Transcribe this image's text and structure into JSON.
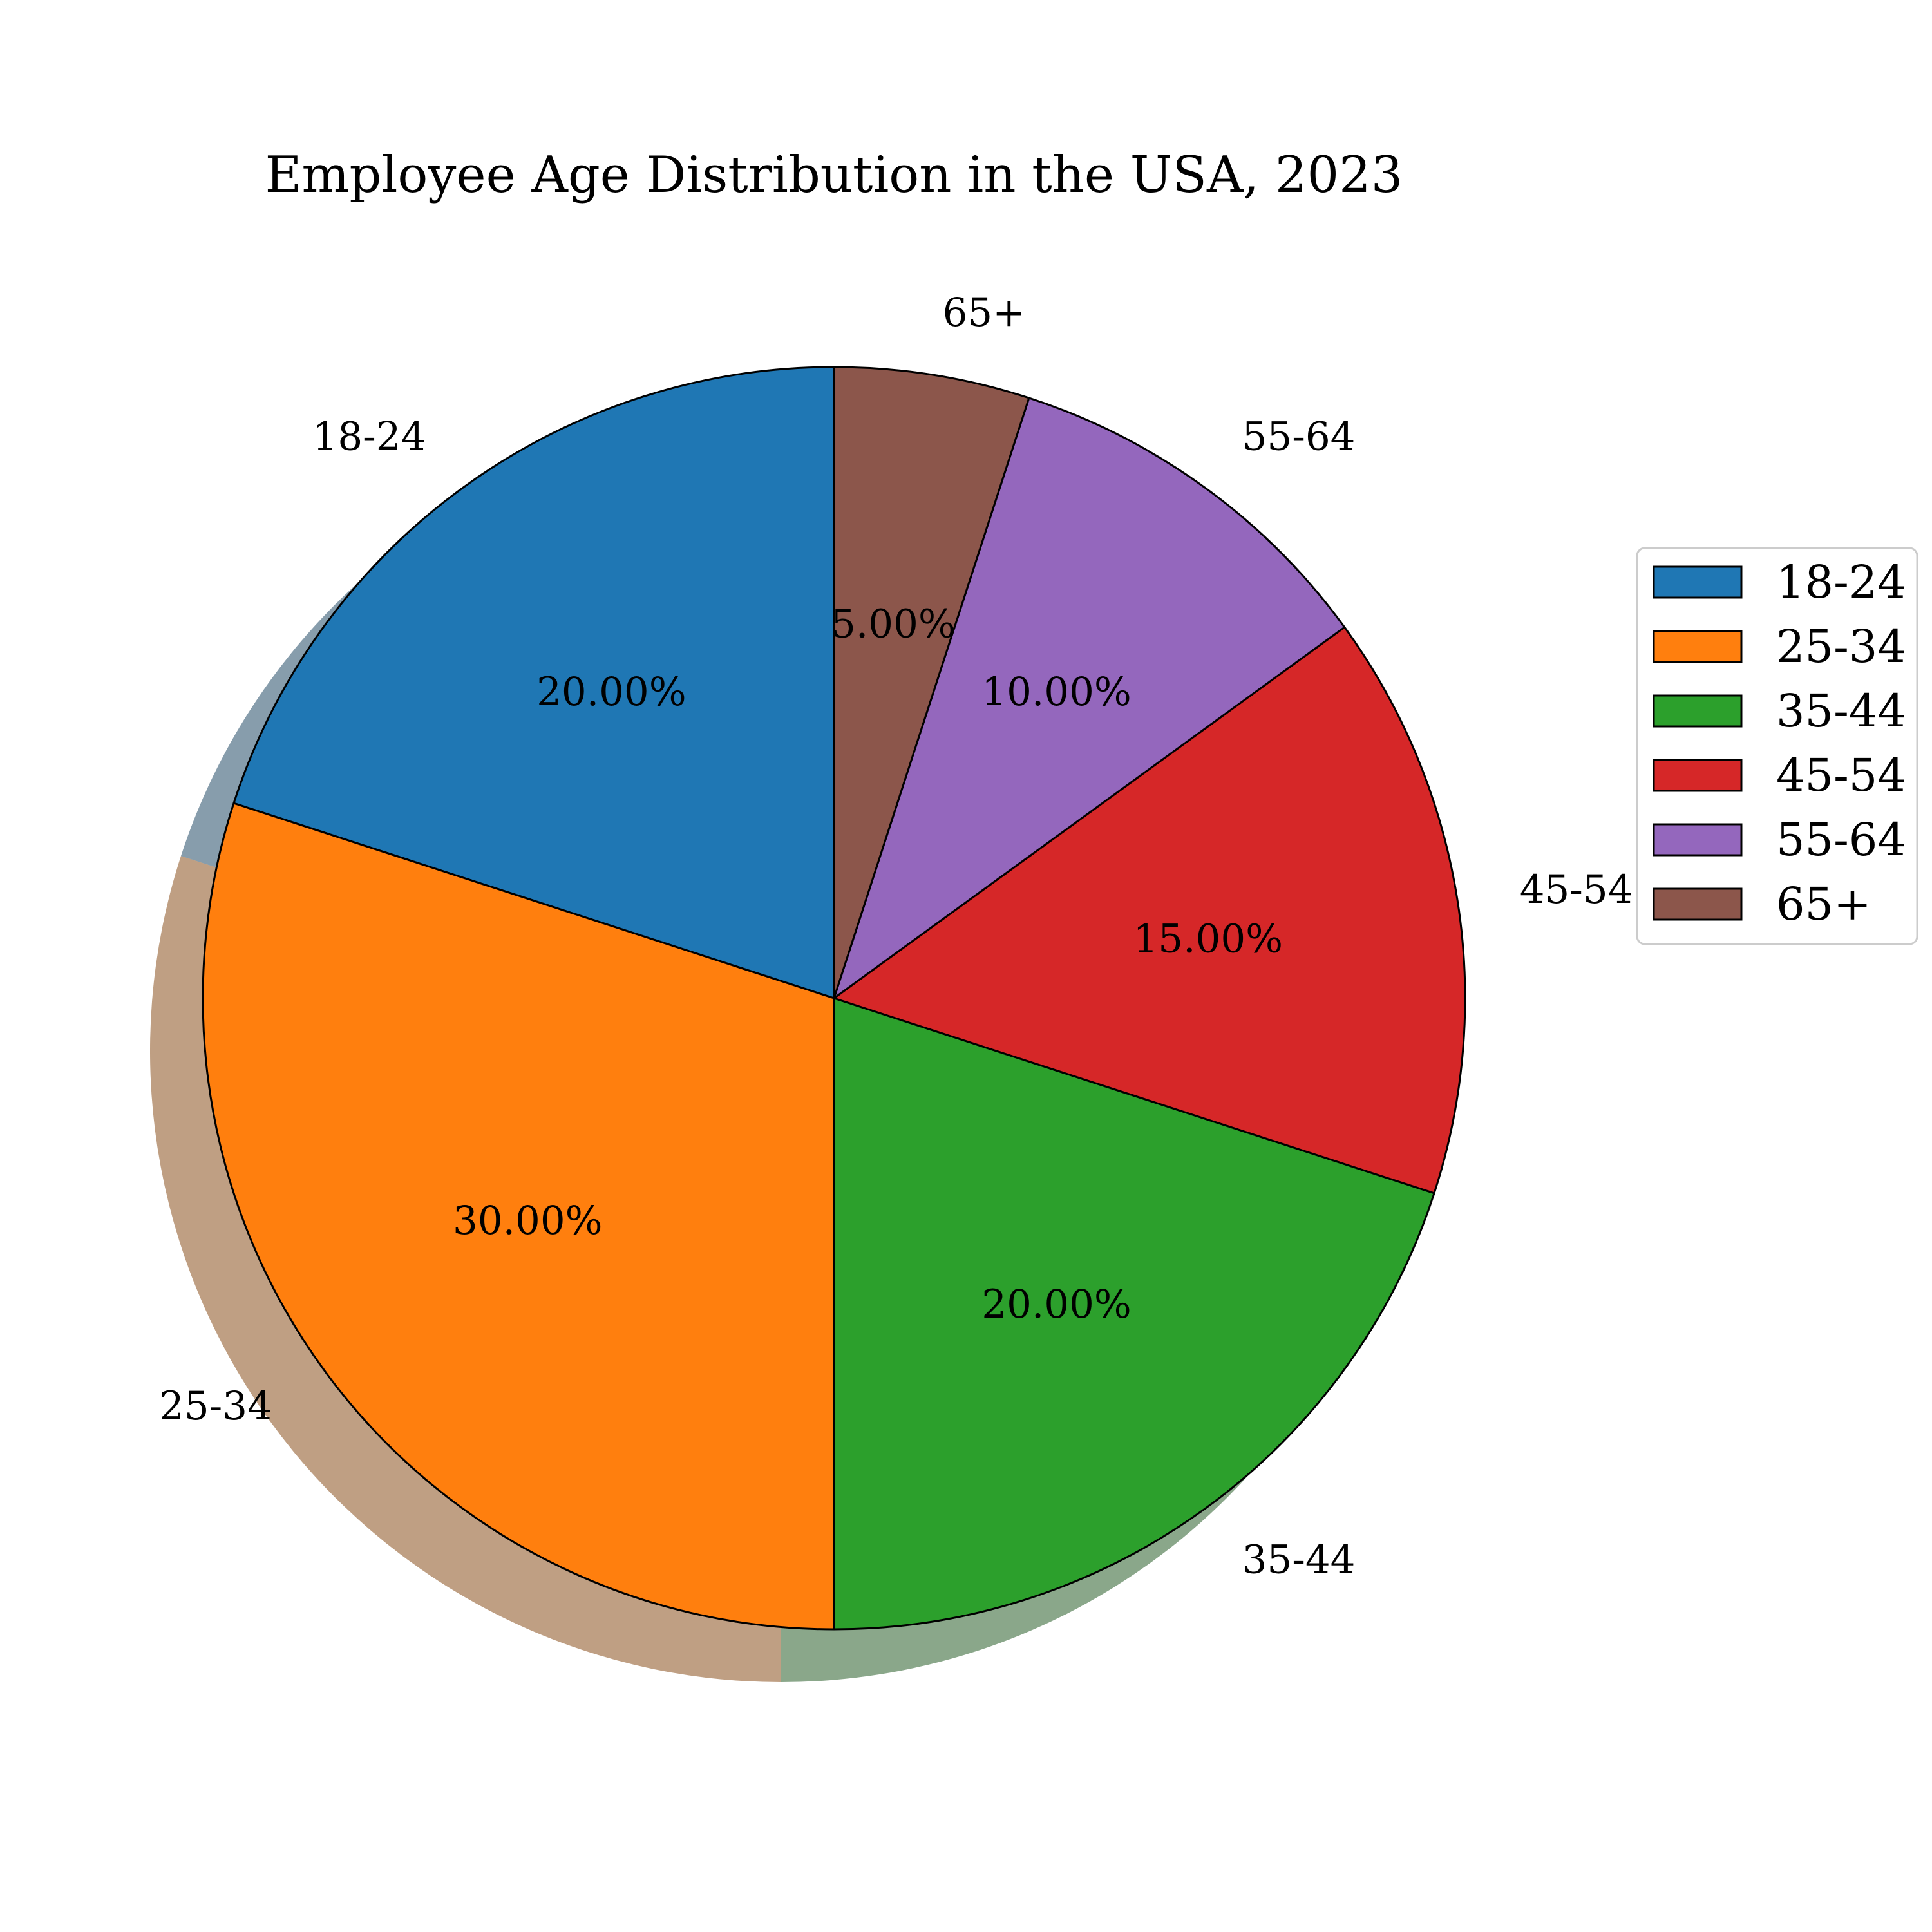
{
  "chart_data": {
    "type": "pie",
    "title": "Employee Age Distribution in the USA, 2023",
    "categories": [
      "18-24",
      "25-34",
      "35-44",
      "45-54",
      "55-64",
      "65+"
    ],
    "values": [
      20,
      30,
      20,
      15,
      10,
      5
    ],
    "value_labels": [
      "20.00%",
      "30.00%",
      "20.00%",
      "15.00%",
      "10.00%",
      "5.00%"
    ],
    "colors": [
      "#1f77b4",
      "#ff7f0e",
      "#2ca02c",
      "#d62728",
      "#9467bd",
      "#8c564b"
    ],
    "start_angle_deg": 90,
    "direction": "counterclockwise",
    "shadow": true,
    "legend": {
      "placement": "right",
      "entries": [
        "18-24",
        "25-34",
        "35-44",
        "45-54",
        "55-64",
        "65+"
      ]
    }
  }
}
